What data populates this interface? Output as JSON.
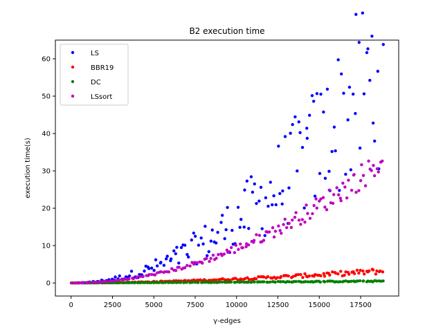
{
  "chart_data": {
    "type": "scatter",
    "title": "B2 execution time",
    "xlabel": "γ-edges",
    "ylabel": "execution time(s)",
    "xlim": [
      -950,
      19800
    ],
    "ylim": [
      -3.5,
      65
    ],
    "xticks": [
      0,
      2500,
      5000,
      7500,
      10000,
      12500,
      15000,
      17500
    ],
    "xtick_labels": [
      "0",
      "2500",
      "5000",
      "7500",
      "10000",
      "12500",
      "15000",
      "17500"
    ],
    "yticks": [
      0,
      10,
      20,
      30,
      40,
      50,
      60
    ],
    "ytick_labels": [
      "0",
      "10",
      "20",
      "30",
      "40",
      "50",
      "60"
    ],
    "grid": false,
    "legend_position": "top-left",
    "point_count_per_series": 160,
    "series": [
      {
        "name": "LS",
        "color": "#0000ff",
        "x_range": [
          0,
          18900
        ],
        "trend": "power",
        "exponent": 2.0,
        "y_at_x_max": 62.0,
        "spread": 0.45,
        "anchor_points": [
          [
            0,
            0
          ],
          [
            2500,
            4.5
          ],
          [
            5000,
            10
          ],
          [
            7500,
            20
          ],
          [
            10000,
            28
          ],
          [
            12500,
            38
          ],
          [
            15000,
            45
          ],
          [
            17500,
            60
          ],
          [
            18900,
            62
          ]
        ]
      },
      {
        "name": "BBR19",
        "color": "#ff0000",
        "x_range": [
          0,
          18900
        ],
        "trend": "power",
        "exponent": 1.7,
        "y_at_x_max": 3.3,
        "spread": 0.25,
        "anchor_points": [
          [
            0,
            0
          ],
          [
            5000,
            0.4
          ],
          [
            10000,
            1.2
          ],
          [
            15000,
            2.3
          ],
          [
            18900,
            3.3
          ]
        ]
      },
      {
        "name": "DC",
        "color": "#008000",
        "x_range": [
          0,
          18900
        ],
        "trend": "power",
        "exponent": 1.2,
        "y_at_x_max": 0.5,
        "spread": 0.35,
        "anchor_points": [
          [
            0,
            0
          ],
          [
            5000,
            0.15
          ],
          [
            10000,
            0.3
          ],
          [
            15000,
            0.4
          ],
          [
            18900,
            0.5
          ]
        ]
      },
      {
        "name": "LSsort",
        "color": "#bf00bf",
        "x_range": [
          0,
          18900
        ],
        "trend": "power",
        "exponent": 2.0,
        "y_at_x_max": 33.5,
        "spread": 0.12,
        "anchor_points": [
          [
            0,
            0
          ],
          [
            2500,
            0.8
          ],
          [
            5000,
            3.5
          ],
          [
            7500,
            7
          ],
          [
            10000,
            10.5
          ],
          [
            12500,
            15.5
          ],
          [
            15000,
            21.5
          ],
          [
            17500,
            29
          ],
          [
            18900,
            33.5
          ]
        ]
      }
    ]
  }
}
